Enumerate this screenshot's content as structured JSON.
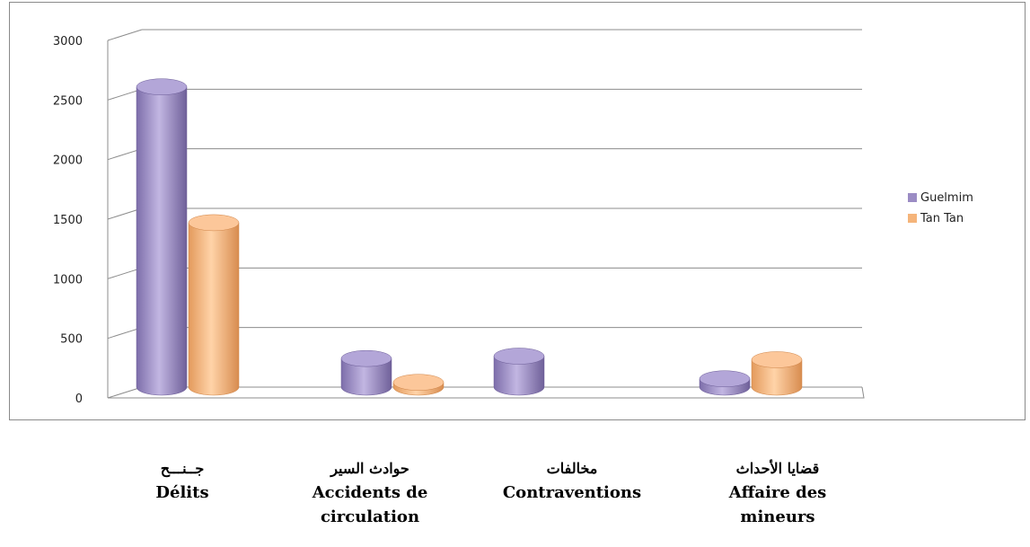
{
  "chart_data": {
    "type": "bar",
    "three_d": true,
    "categories": [
      {
        "ar": "جــنـــح",
        "fr": "Délits"
      },
      {
        "ar": "حوادث السير",
        "fr": "Accidents de circulation"
      },
      {
        "ar": "مخالفات",
        "fr": "Contraventions"
      },
      {
        "ar": "قضايا الأحداث",
        "fr": "Affaire des mineurs"
      }
    ],
    "series": [
      {
        "name": "Guelmim",
        "color": "#9b8cc4",
        "values": [
          2520,
          240,
          260,
          70
        ]
      },
      {
        "name": "Tan Tan",
        "color": "#f5b47a",
        "values": [
          1380,
          40,
          0,
          230
        ]
      }
    ],
    "y_ticks": [
      "0",
      "500",
      "1000",
      "1500",
      "2000",
      "2500",
      "3000"
    ],
    "ylim": [
      0,
      3000
    ],
    "grid": true,
    "legend_position": "right"
  }
}
